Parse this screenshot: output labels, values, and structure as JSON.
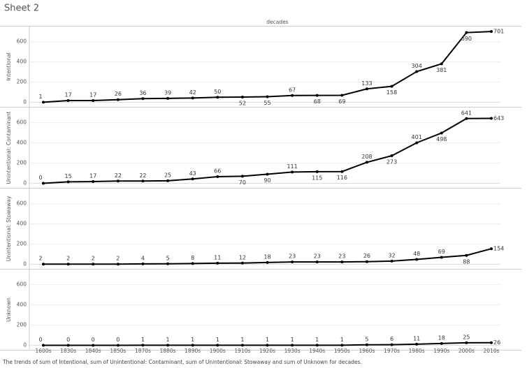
{
  "title": "Sheet 2",
  "chart_data": {
    "type": "line",
    "x_label": "decades",
    "caption": "The trends of sum of Intentional, sum of Unintentional: Contaminant, sum of Unintentional: Stowaway and sum of Unknown for decades.",
    "categories": [
      "1600s",
      "1830s",
      "1840s",
      "1850s",
      "1870s",
      "1880s",
      "1890s",
      "1900s",
      "1910s",
      "1920s",
      "1930s",
      "1940s",
      "1950s",
      "1960s",
      "1970s",
      "1980s",
      "1990s",
      "2000s",
      "2010s"
    ],
    "ylim": [
      -45,
      750
    ],
    "yticks": [
      0,
      200,
      400,
      600
    ],
    "grid": true,
    "series": [
      {
        "name": "Intentional",
        "color": "#000000",
        "values": [
          1,
          17,
          17,
          26,
          36,
          39,
          42,
          50,
          52,
          55,
          67,
          68,
          69,
          133,
          158,
          304,
          381,
          690,
          701
        ]
      },
      {
        "name": "Unintentional: Contaminant",
        "color": "#000000",
        "values": [
          0,
          15,
          17,
          22,
          22,
          25,
          43,
          66,
          70,
          90,
          111,
          115,
          116,
          208,
          273,
          401,
          498,
          641,
          643
        ]
      },
      {
        "name": "Unintentional: Stowaway",
        "color": "#000000",
        "values": [
          2,
          2,
          2,
          2,
          4,
          5,
          8,
          11,
          12,
          18,
          23,
          23,
          23,
          26,
          32,
          48,
          69,
          88,
          154
        ]
      },
      {
        "name": "Unknown",
        "color": "#000000",
        "values": [
          0,
          0,
          0,
          0,
          1,
          1,
          1,
          1,
          1,
          1,
          1,
          1,
          1,
          5,
          6,
          11,
          18,
          25,
          26
        ]
      }
    ]
  }
}
